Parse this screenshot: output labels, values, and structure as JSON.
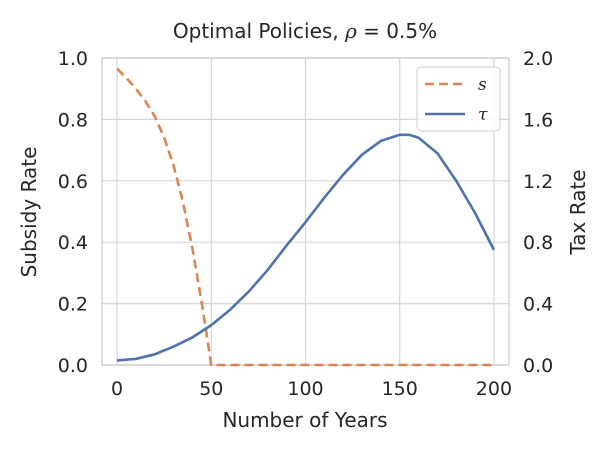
{
  "chart_data": {
    "type": "line",
    "title_parts": {
      "text": "Optimal Policies, ",
      "rho": "ρ",
      "eq": " = 0.5%"
    },
    "xlabel": "Number of Years",
    "ylabel_left": "Subsidy Rate",
    "ylabel_right": "Tax Rate",
    "xlim": [
      -8,
      208
    ],
    "ylim_left": [
      0,
      1.0
    ],
    "ylim_right": [
      0,
      2.0
    ],
    "xticks": [
      0,
      50,
      100,
      150,
      200
    ],
    "xtick_labels": [
      "0",
      "50",
      "100",
      "150",
      "200"
    ],
    "yticks_left": [
      0,
      0.2,
      0.4,
      0.6,
      0.8,
      1.0
    ],
    "ytick_labels_left": [
      "0.0",
      "0.2",
      "0.4",
      "0.6",
      "0.8",
      "1.0"
    ],
    "yticks_right": [
      0,
      0.4,
      0.8,
      1.2,
      1.6,
      2.0
    ],
    "ytick_labels_right": [
      "0.0",
      "0.4",
      "0.8",
      "1.2",
      "1.6",
      "2.0"
    ],
    "grid": true,
    "legend_position": "top-right",
    "series": [
      {
        "name": "s",
        "axis": "left",
        "color": "#dd8452",
        "style": "dashed",
        "x": [
          0,
          5,
          10,
          15,
          20,
          25,
          30,
          35,
          40,
          45,
          50,
          51,
          200
        ],
        "y": [
          0.965,
          0.935,
          0.9,
          0.86,
          0.81,
          0.74,
          0.65,
          0.53,
          0.38,
          0.2,
          0.0,
          0.0,
          0.0
        ]
      },
      {
        "name": "τ",
        "axis": "right",
        "color": "#4c72b0",
        "style": "solid",
        "x": [
          0,
          10,
          20,
          30,
          40,
          50,
          60,
          70,
          80,
          90,
          100,
          110,
          120,
          130,
          140,
          150,
          155,
          160,
          170,
          180,
          190,
          200
        ],
        "y": [
          0.03,
          0.04,
          0.07,
          0.12,
          0.18,
          0.26,
          0.36,
          0.48,
          0.62,
          0.78,
          0.93,
          1.09,
          1.24,
          1.37,
          1.46,
          1.5,
          1.5,
          1.48,
          1.38,
          1.2,
          0.99,
          0.75
        ]
      }
    ]
  }
}
